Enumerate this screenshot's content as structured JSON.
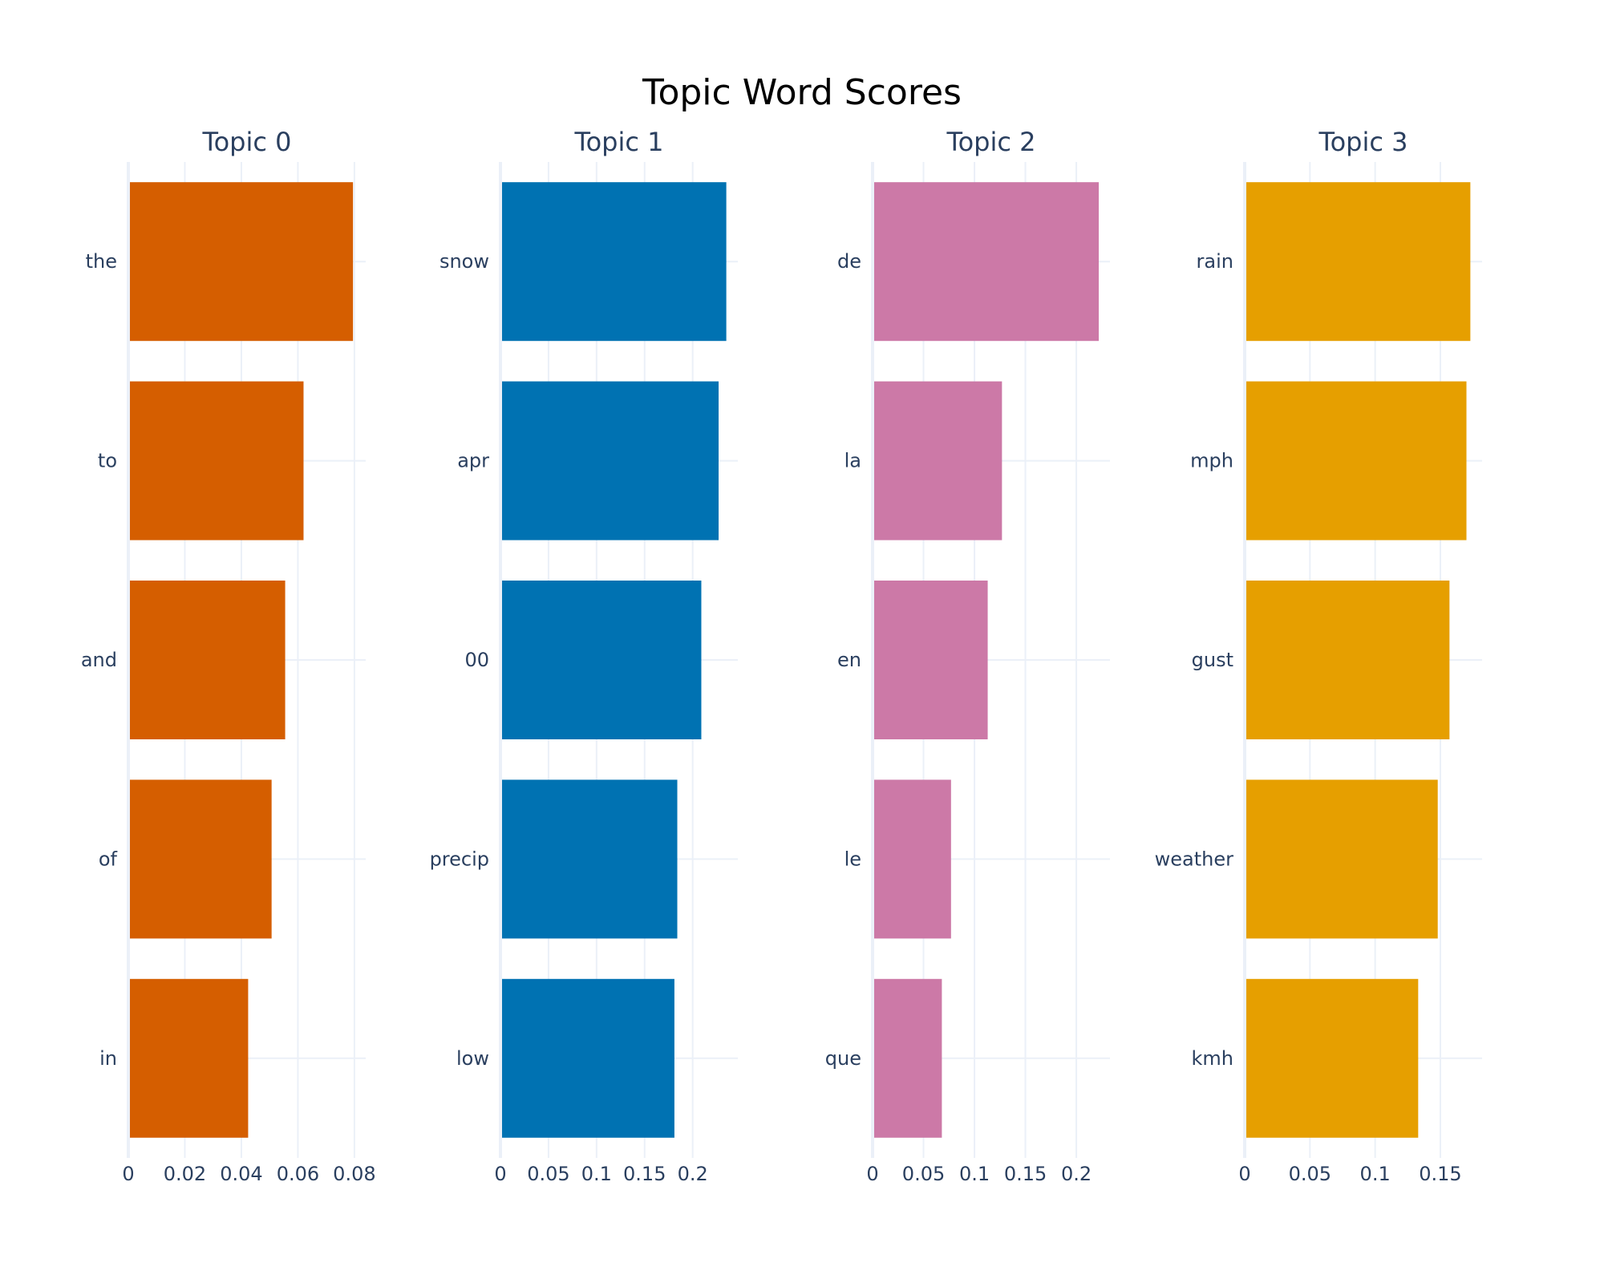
{
  "chart_data": {
    "title": "Topic Word Scores",
    "type": "bar",
    "orientation": "horizontal",
    "grid": true,
    "panels": [
      {
        "title": "Topic 0",
        "color": "#D55E00",
        "categories": [
          "the",
          "to",
          "and",
          "of",
          "in"
        ],
        "values": [
          0.0795,
          0.062,
          0.0555,
          0.0507,
          0.0424
        ],
        "xlim": [
          0,
          0.084
        ],
        "xticks": [
          0,
          0.02,
          0.04,
          0.06,
          0.08
        ],
        "xtick_labels": [
          "0",
          "0.02",
          "0.04",
          "0.06",
          "0.08"
        ]
      },
      {
        "title": "Topic 1",
        "color": "#0072B2",
        "categories": [
          "snow",
          "apr",
          "00",
          "precip",
          "low"
        ],
        "values": [
          0.235,
          0.227,
          0.209,
          0.184,
          0.181
        ],
        "xlim": [
          0,
          0.247
        ],
        "xticks": [
          0,
          0.05,
          0.1,
          0.15,
          0.2
        ],
        "xtick_labels": [
          "0",
          "0.05",
          "0.1",
          "0.15",
          "0.2"
        ]
      },
      {
        "title": "Topic 2",
        "color": "#CC79A7",
        "categories": [
          "de",
          "la",
          "en",
          "le",
          "que"
        ],
        "values": [
          0.222,
          0.127,
          0.113,
          0.077,
          0.068
        ],
        "xlim": [
          0,
          0.233
        ],
        "xticks": [
          0,
          0.05,
          0.1,
          0.15,
          0.2
        ],
        "xtick_labels": [
          "0",
          "0.05",
          "0.1",
          "0.15",
          "0.2"
        ]
      },
      {
        "title": "Topic 3",
        "color": "#E69F00",
        "categories": [
          "rain",
          "mph",
          "gust",
          "weather",
          "kmh"
        ],
        "values": [
          0.173,
          0.17,
          0.157,
          0.148,
          0.133
        ],
        "xlim": [
          0,
          0.182
        ],
        "xticks": [
          0,
          0.05,
          0.1,
          0.15
        ],
        "xtick_labels": [
          "0",
          "0.05",
          "0.1",
          "0.15"
        ]
      }
    ]
  }
}
